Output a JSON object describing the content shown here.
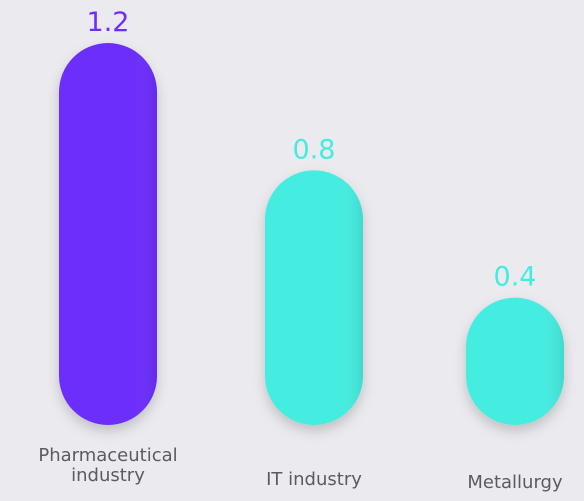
{
  "chart_data": {
    "type": "bar",
    "categories": [
      [
        "Pharmaceutical",
        "industry"
      ],
      [
        "IT industry"
      ],
      [
        "Metallurgy"
      ]
    ],
    "values": [
      1.2,
      0.8,
      0.4
    ],
    "value_labels": [
      "1.2",
      "0.8",
      "0.4"
    ],
    "colors": [
      "#6c2ffb",
      "#44ece0",
      "#44ece0"
    ],
    "title": "",
    "xlabel": "",
    "ylabel": "",
    "grid": false,
    "legend": "none"
  },
  "colors": {
    "background": "#ebebef",
    "category_label": "#5a5a62"
  }
}
